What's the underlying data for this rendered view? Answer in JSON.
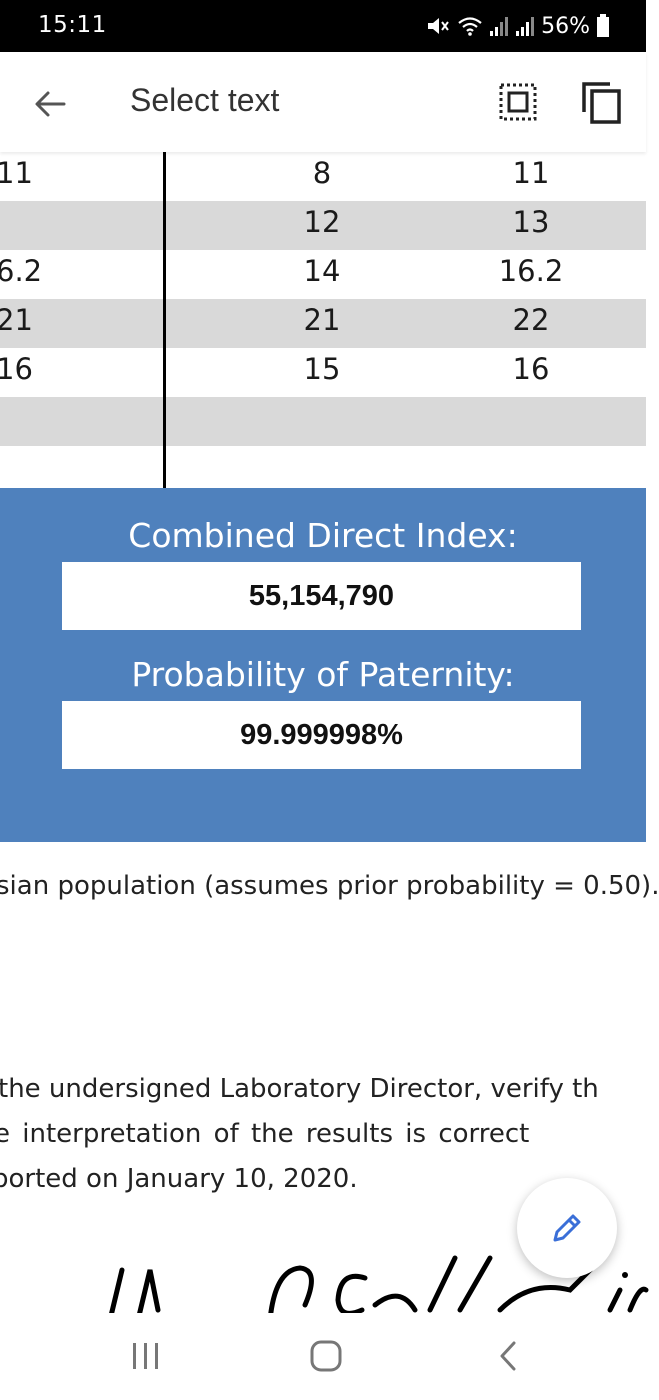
{
  "status_bar": {
    "time": "15:11",
    "battery_percent": "56%",
    "icons": [
      "mute-icon",
      "wifi-icon",
      "signal-icon",
      "signal-icon",
      "battery-icon"
    ]
  },
  "app_bar": {
    "title": "Select text",
    "back_icon": "back-arrow-icon",
    "select_all_icon": "select-all-icon",
    "copy_icon": "copy-icon"
  },
  "table": {
    "rows": [
      {
        "c0": "11",
        "c1": "8",
        "c2": "11",
        "shaded": false
      },
      {
        "c0": "",
        "c1": "12",
        "c2": "13",
        "shaded": true
      },
      {
        "c0": "6.2",
        "c1": "14",
        "c2": "16.2",
        "shaded": false
      },
      {
        "c0": "21",
        "c1": "21",
        "c2": "22",
        "shaded": true
      },
      {
        "c0": "16",
        "c1": "15",
        "c2": "16",
        "shaded": false
      },
      {
        "c0": "",
        "c1": "",
        "c2": "",
        "shaded": true
      },
      {
        "c0": "",
        "c1": "",
        "c2": "",
        "shaded": false
      }
    ]
  },
  "results": {
    "cdi_label": "Combined Direct Index:",
    "cdi_value": "55,154,790",
    "pop_label": "Probability of Paternity:",
    "pop_value": "99.999998%",
    "accent_color": "#4f81bd"
  },
  "document": {
    "population_line": "sian population (assumes prior probability = 0.50).",
    "verify_line1": "the undersigned Laboratory Director, verify th",
    "verify_line2": "e  interpretation  of  the  results  is  correct",
    "verify_line3": "ported on January 10, 2020."
  },
  "fab": {
    "icon": "pencil-icon"
  },
  "nav_bar": {
    "recents_icon": "recents-icon",
    "home_icon": "home-icon",
    "back_icon": "nav-back-icon"
  }
}
